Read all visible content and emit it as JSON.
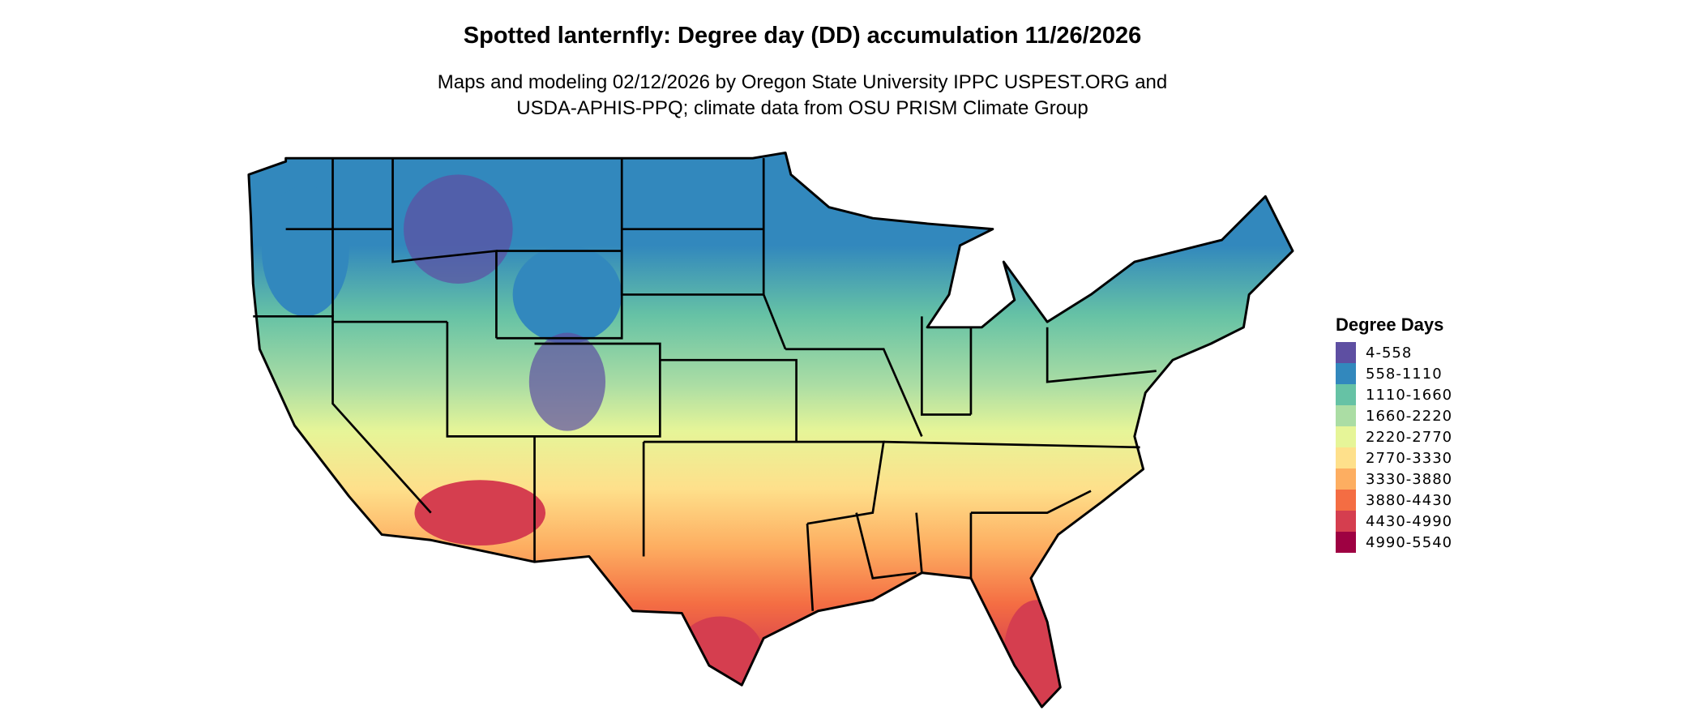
{
  "title": "Spotted lanternfly: Degree day (DD) accumulation 11/26/2026",
  "subtitle_line1": "Maps and modeling 02/12/2026 by Oregon State University IPPC USPEST.ORG and",
  "subtitle_line2": "USDA-APHIS-PPQ; climate data from OSU PRISM Climate Group",
  "legend": {
    "title": "Degree Days",
    "items": [
      {
        "label": "4-558",
        "color": "#5E4FA2"
      },
      {
        "label": "558-1110",
        "color": "#3288BD"
      },
      {
        "label": "1110-1660",
        "color": "#66C2A5"
      },
      {
        "label": "1660-2220",
        "color": "#ABDDA4"
      },
      {
        "label": "2220-2770",
        "color": "#E6F598"
      },
      {
        "label": "2770-3330",
        "color": "#FEE08B"
      },
      {
        "label": "3330-3880",
        "color": "#FDAE61"
      },
      {
        "label": "3880-4430",
        "color": "#F46D43"
      },
      {
        "label": "4430-4990",
        "color": "#D53E4F"
      },
      {
        "label": "4990-5540",
        "color": "#9E0142"
      }
    ]
  },
  "map": {
    "region": "Contiguous United States",
    "boundaries": "state borders"
  }
}
